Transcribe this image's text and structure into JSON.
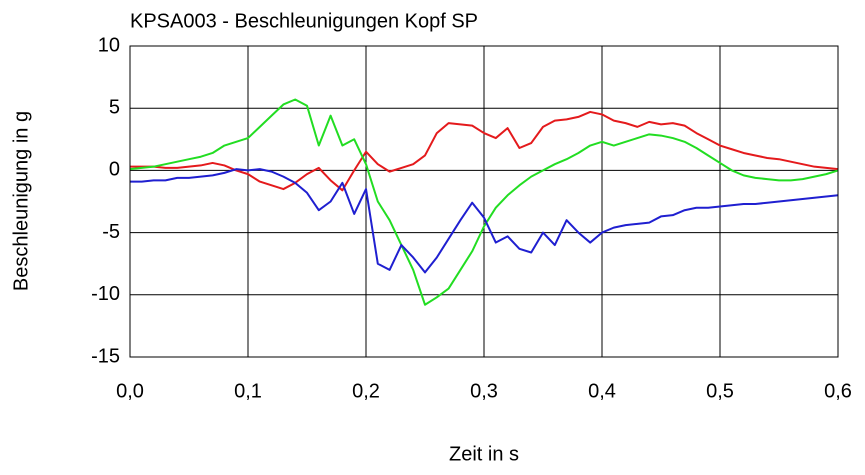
{
  "chart_data": {
    "type": "line",
    "title": "KPSA003 - Beschleunigungen Kopf SP",
    "xlabel": "Zeit in s",
    "ylabel": "Beschleunigung in g",
    "x": [
      0,
      0.01,
      0.02,
      0.03,
      0.04,
      0.05,
      0.06,
      0.07,
      0.08,
      0.09,
      0.1,
      0.11,
      0.12,
      0.13,
      0.14,
      0.15,
      0.16,
      0.17,
      0.18,
      0.19,
      0.2,
      0.21,
      0.22,
      0.23,
      0.24,
      0.25,
      0.26,
      0.27,
      0.28,
      0.29,
      0.3,
      0.31,
      0.32,
      0.33,
      0.34,
      0.35,
      0.36,
      0.37,
      0.38,
      0.39,
      0.4,
      0.41,
      0.42,
      0.43,
      0.44,
      0.45,
      0.46,
      0.47,
      0.48,
      0.49,
      0.5,
      0.51,
      0.52,
      0.53,
      0.54,
      0.55,
      0.56,
      0.57,
      0.58,
      0.59,
      0.6
    ],
    "series": [
      {
        "color": "#e41a1c",
        "values": [
          0.3,
          0.3,
          0.3,
          0.2,
          0.2,
          0.3,
          0.4,
          0.6,
          0.4,
          0.0,
          -0.3,
          -0.9,
          -1.2,
          -1.5,
          -1.0,
          -0.3,
          0.2,
          -0.8,
          -1.6,
          0.0,
          1.5,
          0.5,
          -0.1,
          0.2,
          0.5,
          1.2,
          3.0,
          3.8,
          3.7,
          3.6,
          3.0,
          2.6,
          3.4,
          1.8,
          2.2,
          3.5,
          4.0,
          4.1,
          4.3,
          4.7,
          4.5,
          4.0,
          3.8,
          3.5,
          3.9,
          3.7,
          3.8,
          3.6,
          3.0,
          2.5,
          2.0,
          1.7,
          1.4,
          1.2,
          1.0,
          0.9,
          0.7,
          0.5,
          0.3,
          0.2,
          0.1
        ]
      },
      {
        "color": "#22dd22",
        "values": [
          0.1,
          0.2,
          0.3,
          0.5,
          0.7,
          0.9,
          1.1,
          1.4,
          2.0,
          2.3,
          2.6,
          3.5,
          4.4,
          5.3,
          5.7,
          5.2,
          2.0,
          4.4,
          2.0,
          2.5,
          0.5,
          -2.5,
          -4.0,
          -6.0,
          -8.0,
          -10.8,
          -10.2,
          -9.5,
          -8.0,
          -6.5,
          -4.5,
          -3.0,
          -2.0,
          -1.2,
          -0.5,
          0.0,
          0.5,
          0.9,
          1.4,
          2.0,
          2.3,
          2.0,
          2.3,
          2.6,
          2.9,
          2.8,
          2.6,
          2.3,
          1.8,
          1.2,
          0.6,
          0.0,
          -0.4,
          -0.6,
          -0.7,
          -0.8,
          -0.8,
          -0.7,
          -0.5,
          -0.3,
          0.0
        ]
      },
      {
        "color": "#1f1fd0",
        "values": [
          -0.9,
          -0.9,
          -0.8,
          -0.8,
          -0.6,
          -0.6,
          -0.5,
          -0.4,
          -0.2,
          0.1,
          0.0,
          0.1,
          -0.1,
          -0.5,
          -1.0,
          -1.8,
          -3.2,
          -2.5,
          -1.0,
          -3.5,
          -1.5,
          -7.5,
          -8.0,
          -6.0,
          -7.0,
          -8.2,
          -7.0,
          -5.5,
          -4.0,
          -2.6,
          -3.8,
          -5.8,
          -5.3,
          -6.3,
          -6.6,
          -5.0,
          -6.0,
          -4.0,
          -5.0,
          -5.8,
          -5.0,
          -4.6,
          -4.4,
          -4.3,
          -4.2,
          -3.7,
          -3.6,
          -3.2,
          -3.0,
          -3.0,
          -2.9,
          -2.8,
          -2.7,
          -2.7,
          -2.6,
          -2.5,
          -2.4,
          -2.3,
          -2.2,
          -2.1,
          -2.0
        ]
      }
    ],
    "xlim": [
      0,
      0.6
    ],
    "ylim": [
      -15,
      10
    ],
    "xticks": [
      {
        "value": 0,
        "label": "0,0"
      },
      {
        "value": 0.1,
        "label": "0,1"
      },
      {
        "value": 0.2,
        "label": "0,2"
      },
      {
        "value": 0.3,
        "label": "0,3"
      },
      {
        "value": 0.4,
        "label": "0,4"
      },
      {
        "value": 0.5,
        "label": "0,5"
      },
      {
        "value": 0.6,
        "label": "0,6"
      }
    ],
    "yticks": [
      -15,
      -10,
      -5,
      0,
      5,
      10
    ],
    "grid": true
  }
}
